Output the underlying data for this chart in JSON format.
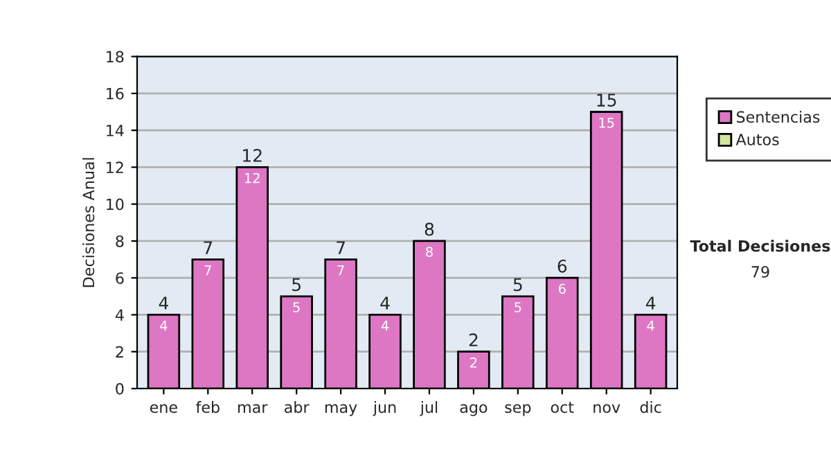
{
  "chart_data": {
    "type": "bar",
    "stacked": true,
    "ylabel": "Decisiones Anual",
    "categories": [
      "ene",
      "feb",
      "mar",
      "abr",
      "may",
      "jun",
      "jul",
      "ago",
      "sep",
      "oct",
      "nov",
      "dic"
    ],
    "series": [
      {
        "name": "Sentencias",
        "color": "#dd77c4",
        "values": [
          4,
          7,
          12,
          5,
          7,
          4,
          8,
          2,
          5,
          6,
          15,
          4
        ]
      },
      {
        "name": "Autos",
        "color": "#d4e89c",
        "values": [
          null,
          null,
          null,
          null,
          null,
          null,
          null,
          null,
          null,
          null,
          null,
          null
        ]
      }
    ],
    "totals": [
      "4",
      "7",
      "12",
      "5",
      "7",
      "4",
      "8",
      "2",
      "5",
      "6",
      "15",
      "4"
    ],
    "data_labels": true,
    "ylim": [
      0,
      18
    ],
    "yticks": [
      0,
      2,
      4,
      6,
      8,
      10,
      12,
      14,
      16,
      18
    ],
    "grid": "y",
    "legend": "right",
    "annotations": [
      "Total Decisiones",
      "79"
    ]
  }
}
